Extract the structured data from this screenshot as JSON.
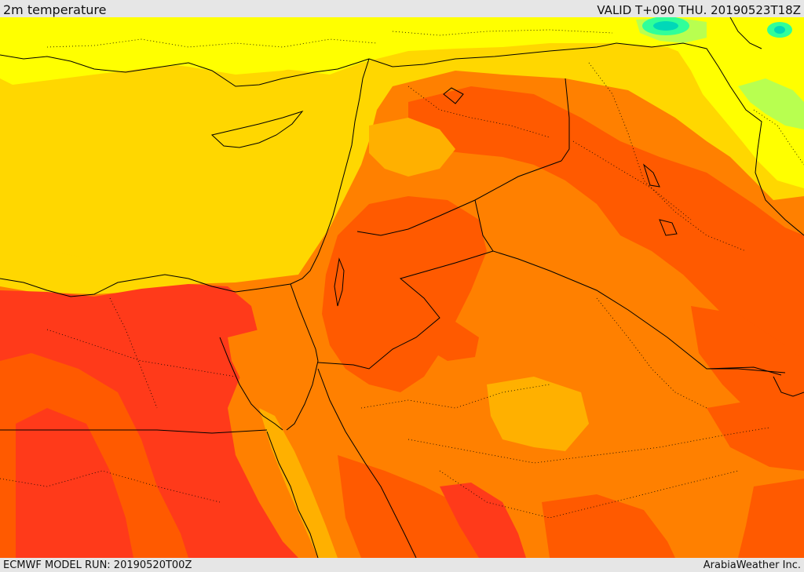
{
  "header": {
    "title": "2m temperature",
    "valid": "VALID T+090 THU. 20190523T18Z"
  },
  "footer": {
    "model_run": "ECMWF MODEL RUN: 20190520T00Z",
    "credit": "ArabiaWeather Inc."
  },
  "colors": {
    "yellow": "#ffff00",
    "gold": "#ffd700",
    "amber": "#ffb000",
    "orange": "#ff8000",
    "dark_orange": "#ff5a00",
    "red": "#ff3a1a",
    "light_green": "#b8ff50",
    "aqua": "#30ff9a",
    "teal": "#00d8b8",
    "borders": "#000000"
  }
}
